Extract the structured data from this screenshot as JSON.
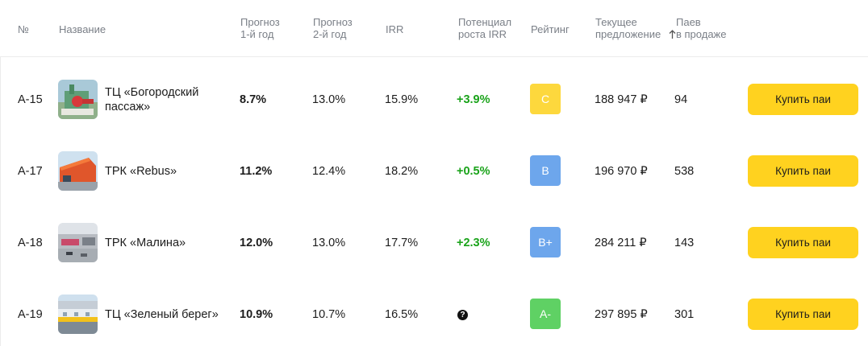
{
  "header": {
    "num": "№",
    "name": "Название",
    "forecast1": [
      "Прогноз",
      "1-й год"
    ],
    "forecast2": [
      "Прогноз",
      "2-й год"
    ],
    "irr": "IRR",
    "potential": [
      "Потенциал",
      "роста IRR"
    ],
    "rating": "Рейтинг",
    "offer": [
      "Текущее",
      "предложение"
    ],
    "shares": [
      "Паев",
      "в продаже"
    ]
  },
  "colors": {
    "rating_C": "#fdd83d",
    "rating_B": "#6da6ec",
    "rating_Bplus": "#6da6ec",
    "rating_Aminus": "#5fd164",
    "button": "#ffd21f",
    "positive": "#1aa31a"
  },
  "rows": [
    {
      "id": "A-15",
      "name_lines": [
        "ТЦ «Богородский",
        "пассаж»"
      ],
      "thumb_icon": "mall-bogorodsky-photo-icon",
      "forecast1": "8.7%",
      "forecast2": "13.0%",
      "irr": "15.9%",
      "potential": "+3.9%",
      "rating": "C",
      "rating_color": "#fdd83d",
      "offer": "188 947 ₽",
      "shares": "94",
      "button": "Купить паи"
    },
    {
      "id": "A-17",
      "name_lines": [
        "ТРК «Rebus»"
      ],
      "thumb_icon": "mall-rebus-photo-icon",
      "forecast1": "11.2%",
      "forecast2": "12.4%",
      "irr": "18.2%",
      "potential": "+0.5%",
      "rating": "B",
      "rating_color": "#6da6ec",
      "offer": "196 970 ₽",
      "shares": "538",
      "button": "Купить паи"
    },
    {
      "id": "A-18",
      "name_lines": [
        "ТРК «Малина»"
      ],
      "thumb_icon": "mall-malina-photo-icon",
      "forecast1": "12.0%",
      "forecast2": "13.0%",
      "irr": "17.7%",
      "potential": "+2.3%",
      "rating": "B+",
      "rating_color": "#6da6ec",
      "offer": "284 211 ₽",
      "shares": "143",
      "button": "Купить паи"
    },
    {
      "id": "A-19",
      "name_lines": [
        "ТЦ «Зеленый берег»"
      ],
      "thumb_icon": "mall-zeleny-bereg-photo-icon",
      "forecast1": "10.9%",
      "forecast2": "10.7%",
      "irr": "16.5%",
      "potential_icon": "question-icon",
      "potential_icon_glyph": "?",
      "rating": "A-",
      "rating_color": "#5fd164",
      "offer": "297 895 ₽",
      "shares": "301",
      "button": "Купить паи"
    }
  ]
}
